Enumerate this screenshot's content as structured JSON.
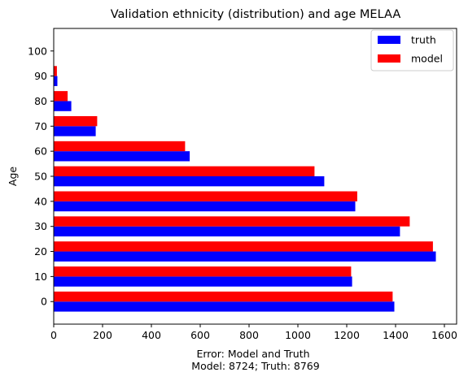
{
  "chart_data": {
    "type": "bar",
    "orientation": "horizontal",
    "title": "Validation ethnicity (distribution) and age MELAA",
    "xlabel_line1": "Error: Model and Truth",
    "xlabel_line2": "Model: 8724; Truth: 8769",
    "ylabel": "Age",
    "categories": [
      "0",
      "10",
      "20",
      "30",
      "40",
      "50",
      "60",
      "70",
      "80",
      "90",
      "100"
    ],
    "category_values": [
      0,
      10,
      20,
      30,
      40,
      50,
      60,
      70,
      80,
      90,
      100
    ],
    "series": [
      {
        "name": "truth",
        "color": "#0000ff",
        "values": [
          1395,
          1222,
          1565,
          1418,
          1235,
          1108,
          557,
          172,
          72,
          15,
          0
        ]
      },
      {
        "name": "model",
        "color": "#ff0000",
        "values": [
          1388,
          1218,
          1553,
          1458,
          1243,
          1068,
          538,
          178,
          57,
          13,
          0
        ]
      }
    ],
    "xlim": [
      0,
      1650
    ],
    "xticks": [
      0,
      200,
      400,
      600,
      800,
      1000,
      1200,
      1400,
      1600
    ],
    "ylim": [
      -9,
      109
    ],
    "legend_position": "top-right",
    "grid": false
  }
}
